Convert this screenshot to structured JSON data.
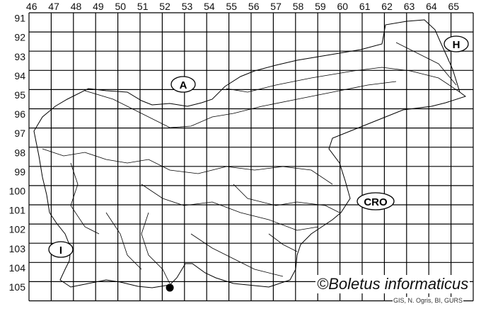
{
  "map": {
    "columns": [
      "46",
      "47",
      "48",
      "49",
      "50",
      "51",
      "52",
      "53",
      "54",
      "55",
      "56",
      "57",
      "58",
      "59",
      "60",
      "61",
      "62",
      "63",
      "64",
      "65"
    ],
    "rows": [
      "91",
      "92",
      "93",
      "94",
      "95",
      "96",
      "97",
      "98",
      "99",
      "100",
      "101",
      "102",
      "103",
      "104",
      "105"
    ],
    "neighbours": {
      "austria": "A",
      "hungary": "H",
      "croatia": "CRO",
      "italy": "I"
    },
    "records": [
      {
        "column": "52",
        "row": "105"
      }
    ],
    "credit": "©Boletus informaticus",
    "source": "GIS, N. Ogris, BI, GURS"
  }
}
